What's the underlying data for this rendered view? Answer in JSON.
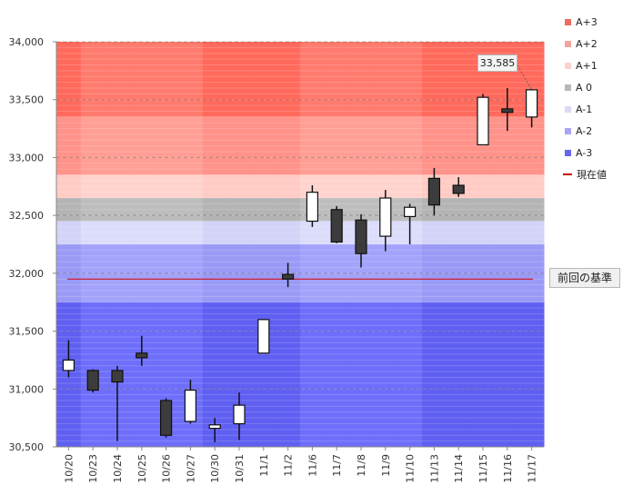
{
  "chart_data": {
    "type": "candlestick",
    "ylim": [
      30500,
      34000
    ],
    "y_ticks": [
      "30,500",
      "31,000",
      "31,500",
      "32,000",
      "32,500",
      "33,000",
      "33,500",
      "34,000"
    ],
    "y_tick_values": [
      30500,
      31000,
      31500,
      32000,
      32500,
      33000,
      33500,
      34000
    ],
    "reference": {
      "label": "前回の基準",
      "value": 31950
    },
    "callout": {
      "text": "33,585",
      "value": 33585
    },
    "legend": [
      {
        "label": "A+3",
        "color": "#ee6b5e"
      },
      {
        "label": "A+2",
        "color": "#f5a39b"
      },
      {
        "label": "A+1",
        "color": "#fbd3cd"
      },
      {
        "label": "A 0",
        "color": "#b8b8b8"
      },
      {
        "label": "A-1",
        "color": "#d9d9f6"
      },
      {
        "label": "A-2",
        "color": "#a6a6f2"
      },
      {
        "label": "A-3",
        "color": "#6666ee"
      },
      {
        "label": "現在値",
        "color": "#cc0000",
        "type": "line"
      }
    ],
    "bands": [
      {
        "name": "A+3",
        "from": 33350,
        "to": 34000,
        "color": "#ff7b6e",
        "alt_color": "#ff6a5c"
      },
      {
        "name": "A+2",
        "from": 32850,
        "to": 33350,
        "color": "#ff9e95",
        "alt_color": "#ff9289"
      },
      {
        "name": "A+1",
        "from": 32650,
        "to": 32850,
        "color": "#ffd3cd",
        "alt_color": "#ffcbc4"
      },
      {
        "name": "A 0",
        "from": 32450,
        "to": 32650,
        "color": "#bdbdbd",
        "alt_color": "#b4b4b4"
      },
      {
        "name": "A-1",
        "from": 32250,
        "to": 32450,
        "color": "#dcdcfb",
        "alt_color": "#d3d3f8"
      },
      {
        "name": "A-2",
        "from": 31750,
        "to": 32250,
        "color": "#a3a3fb",
        "alt_color": "#9a9af6"
      },
      {
        "name": "A-3",
        "from": 30500,
        "to": 31750,
        "color": "#6e6efb",
        "alt_color": "#5f5ff2"
      }
    ],
    "categories": [
      "10/20",
      "10/23",
      "10/24",
      "10/25",
      "10/26",
      "10/27",
      "10/30",
      "10/31",
      "11/1",
      "11/2",
      "11/6",
      "11/7",
      "11/8",
      "11/9",
      "11/10",
      "11/13",
      "11/14",
      "11/15",
      "11/16",
      "11/17"
    ],
    "week_groups": [
      1,
      0,
      0,
      0,
      0,
      0,
      1,
      1,
      1,
      1,
      0,
      0,
      0,
      0,
      0,
      1,
      1,
      1,
      1,
      1
    ],
    "candles": [
      {
        "open": 31160,
        "close": 31250,
        "high": 31420,
        "low": 31100
      },
      {
        "open": 31160,
        "close": 30990,
        "high": 31170,
        "low": 30970
      },
      {
        "open": 31160,
        "close": 31060,
        "high": 31200,
        "low": 30550
      },
      {
        "open": 31310,
        "close": 31270,
        "high": 31460,
        "low": 31200
      },
      {
        "open": 30900,
        "close": 30600,
        "high": 30920,
        "low": 30580
      },
      {
        "open": 30720,
        "close": 30990,
        "high": 31080,
        "low": 30700
      },
      {
        "open": 30660,
        "close": 30690,
        "high": 30750,
        "low": 30540
      },
      {
        "open": 30700,
        "close": 30860,
        "high": 30970,
        "low": 30560
      },
      {
        "open": 31310,
        "close": 31600,
        "high": 31600,
        "low": 31310
      },
      {
        "open": 31990,
        "close": 31950,
        "high": 32090,
        "low": 31880
      },
      {
        "open": 32450,
        "close": 32700,
        "high": 32760,
        "low": 32400
      },
      {
        "open": 32550,
        "close": 32270,
        "high": 32580,
        "low": 32260
      },
      {
        "open": 32460,
        "close": 32170,
        "high": 32510,
        "low": 32050
      },
      {
        "open": 32320,
        "close": 32650,
        "high": 32720,
        "low": 32190
      },
      {
        "open": 32490,
        "close": 32570,
        "high": 32600,
        "low": 32250
      },
      {
        "open": 32820,
        "close": 32590,
        "high": 32910,
        "low": 32500
      },
      {
        "open": 32760,
        "close": 32690,
        "high": 32830,
        "low": 32660
      },
      {
        "open": 33110,
        "close": 33520,
        "high": 33550,
        "low": 33110
      },
      {
        "open": 33420,
        "close": 33390,
        "high": 33600,
        "low": 33230
      },
      {
        "open": 33350,
        "close": 33585,
        "high": 33590,
        "low": 33260
      }
    ]
  }
}
